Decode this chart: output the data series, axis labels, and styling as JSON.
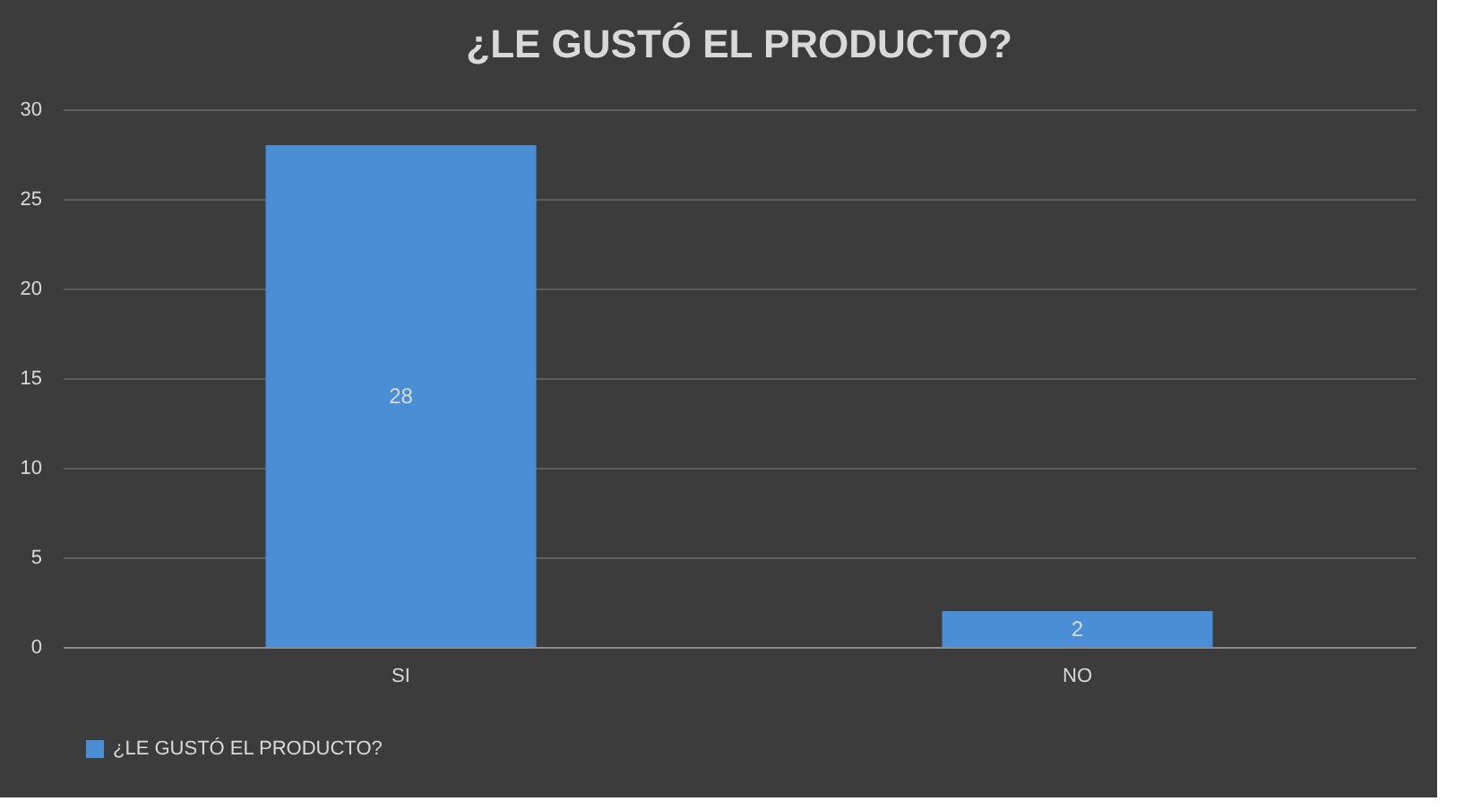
{
  "chart_data": {
    "type": "bar",
    "title": "¿LE GUSTÓ EL PRODUCTO?",
    "categories": [
      "SI",
      "NO"
    ],
    "series": [
      {
        "name": "¿LE GUSTÓ EL PRODUCTO?",
        "color": "#4a8fd6",
        "values": [
          28,
          2
        ]
      }
    ],
    "ylim": [
      0,
      30
    ],
    "yticks": [
      0,
      5,
      10,
      15,
      20,
      25,
      30
    ],
    "grid": "y",
    "legend": "bottom",
    "data_labels": true
  }
}
